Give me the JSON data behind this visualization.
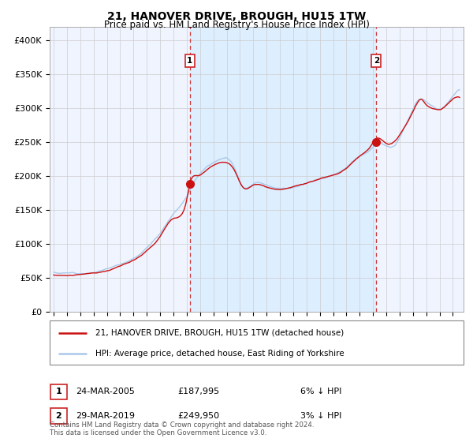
{
  "title": "21, HANOVER DRIVE, BROUGH, HU15 1TW",
  "subtitle": "Price paid vs. HM Land Registry's House Price Index (HPI)",
  "legend_line1": "21, HANOVER DRIVE, BROUGH, HU15 1TW (detached house)",
  "legend_line2": "HPI: Average price, detached house, East Riding of Yorkshire",
  "transaction1_date": "24-MAR-2005",
  "transaction1_price": 187995,
  "transaction1_label": "6% ↓ HPI",
  "transaction2_date": "29-MAR-2019",
  "transaction2_price": 249950,
  "transaction2_label": "3% ↓ HPI",
  "ylim": [
    0,
    420000
  ],
  "yticks": [
    0,
    50000,
    100000,
    150000,
    200000,
    250000,
    300000,
    350000,
    400000
  ],
  "ytick_labels": [
    "£0",
    "£50K",
    "£100K",
    "£150K",
    "£200K",
    "£250K",
    "£300K",
    "£350K",
    "£400K"
  ],
  "hpi_color": "#aac8e8",
  "price_color": "#cc1111",
  "marker_color": "#cc1111",
  "vline_color": "#cc3333",
  "shade_color": "#ddeeff",
  "grid_color": "#cccccc",
  "bg_color": "#f0f4ff",
  "footer": "Contains HM Land Registry data © Crown copyright and database right 2024.\nThis data is licensed under the Open Government Licence v3.0.",
  "transaction1_year": 2005.23,
  "transaction2_year": 2019.24
}
